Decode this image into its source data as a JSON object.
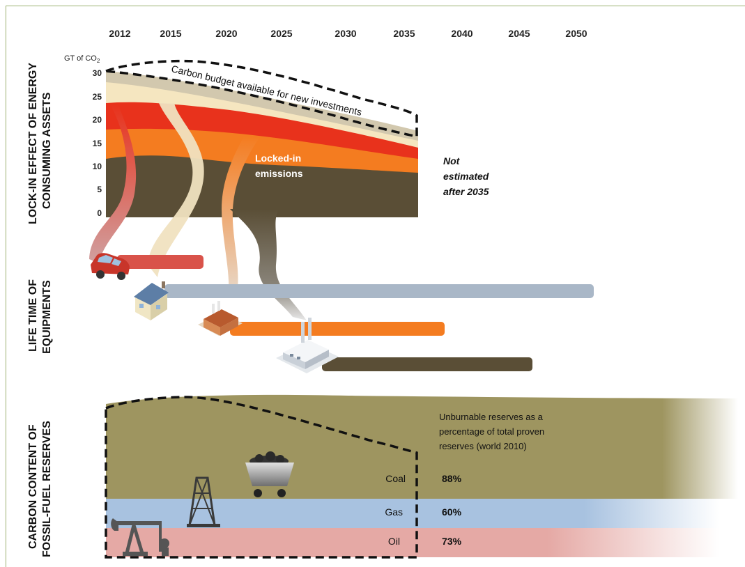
{
  "years": [
    "2012",
    "2015",
    "2020",
    "2025",
    "2030",
    "2035",
    "2040",
    "2045",
    "2050"
  ],
  "y_axis": {
    "unit_main": "GT of CO",
    "unit_sub": "2",
    "ticks": [
      "30",
      "25",
      "20",
      "15",
      "10",
      "5",
      "0"
    ]
  },
  "side_labels": {
    "lockin_line1": "LOCK-IN EFFECT OF ENERGY",
    "lockin_line2": "CONSUMING ASSETS",
    "lifetime_line1": "LIFE TIME OF",
    "lifetime_line2": "EQUIPMENTS",
    "carbon_line1": "CARBON CONTENT OF",
    "carbon_line2": "FOSSIL-FUEL RESERVES"
  },
  "labels": {
    "carbon_budget": "Carbon budget available for new investments",
    "locked_in_line1": "Locked-in",
    "locked_in_line2": "emissions",
    "not_estimated_line1": "Not",
    "not_estimated_line2": "estimated",
    "not_estimated_line3": "after 2035"
  },
  "reserves": {
    "caption_line1": "Unburnable reserves as a",
    "caption_line2": "percentage of total proven",
    "caption_line3": "reserves (world 2010)",
    "items": [
      {
        "name": "Coal",
        "pct": "88%"
      },
      {
        "name": "Gas",
        "pct": "60%"
      },
      {
        "name": "Oil",
        "pct": "73%"
      }
    ]
  },
  "colors": {
    "car": "#d9534a",
    "buildings": "#a9b7c7",
    "industry": "#f47c20",
    "power": "#5a4e36",
    "coal": "#9e9560",
    "gas": "#a8c2e0",
    "oil": "#e5a9a5",
    "budget_cream": "#f5e6c0",
    "budget_grey": "#d2c8ae"
  }
}
